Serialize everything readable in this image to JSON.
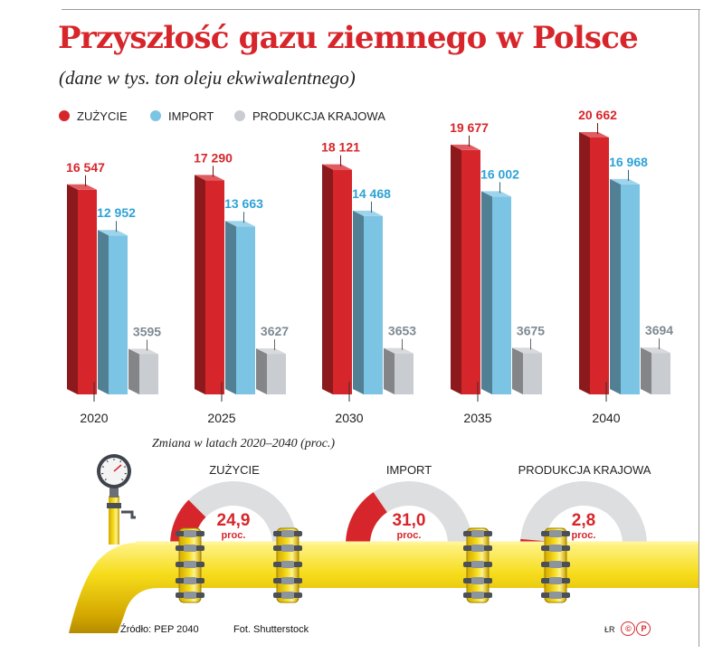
{
  "title": "Przyszłość gazu ziemnego w Polsce",
  "subtitle": "(dane w tys. ton oleju ekwiwalentnego)",
  "colors": {
    "consumption": "#d7262b",
    "import": "#7cc4e4",
    "production": "#c9ccd0",
    "title": "#d7262b"
  },
  "chart_data": {
    "type": "bar",
    "categories": [
      "2020",
      "2025",
      "2030",
      "2035",
      "2040"
    ],
    "series": [
      {
        "name": "ZUŻYCIE",
        "values": [
          16547,
          17290,
          18121,
          19677,
          20662
        ],
        "labels": [
          "16 547",
          "17 290",
          "18 121",
          "19 677",
          "20 662"
        ]
      },
      {
        "name": "IMPORT",
        "values": [
          12952,
          13663,
          14468,
          16002,
          16968
        ],
        "labels": [
          "12 952",
          "13 663",
          "14 468",
          "16 002",
          "16 968"
        ]
      },
      {
        "name": "PRODUKCJA KRAJOWA",
        "values": [
          3595,
          3627,
          3653,
          3675,
          3694
        ],
        "labels": [
          "3595",
          "3627",
          "3653",
          "3675",
          "3694"
        ]
      }
    ],
    "legend_position": "top-left",
    "grid": false
  },
  "change": {
    "title": "Zmiana w latach 2020–2040 (proc.)",
    "unit": "proc.",
    "items": [
      {
        "label": "ZUŻYCIE",
        "value": 24.9,
        "display": "24,9"
      },
      {
        "label": "IMPORT",
        "value": 31.0,
        "display": "31,0"
      },
      {
        "label": "PRODUKCJA KRAJOWA",
        "value": 2.8,
        "display": "2,8"
      }
    ]
  },
  "footer": {
    "source": "Źródło: PEP 2040",
    "photo": "Fot. Shutterstock",
    "initials": "ŁR",
    "logo": "©P"
  }
}
